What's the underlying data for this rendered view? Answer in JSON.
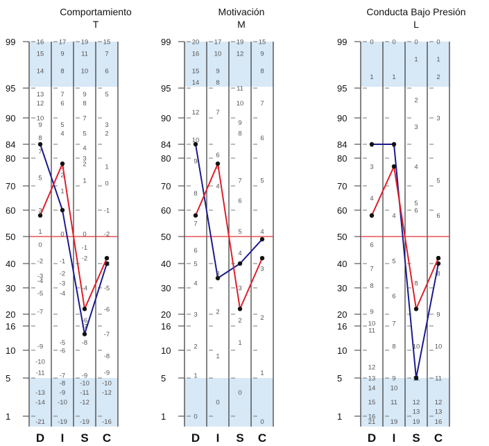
{
  "page": {
    "percentile_labels": [
      "99",
      "95",
      "90",
      "84",
      "80",
      "70",
      "60",
      "50",
      "40",
      "30",
      "20",
      "16",
      "10",
      "5",
      "1"
    ],
    "column_letters": [
      "D",
      "I",
      "S",
      "C"
    ],
    "colors": {
      "band": "#d7e8f6",
      "axis": "#333333",
      "midline": "#e03030",
      "blue_line": "#1a1a8c",
      "red_line": "#dd1f2b",
      "cell_text": "#555555"
    }
  },
  "chart_data": [
    {
      "type": "line",
      "title": "Comportamiento",
      "subtitle": "T",
      "categories": [
        "D",
        "I",
        "S",
        "C"
      ],
      "ylabel_ticks": [
        "99",
        "95",
        "90",
        "84",
        "80",
        "70",
        "60",
        "50",
        "40",
        "30",
        "20",
        "16",
        "10",
        "5",
        "1"
      ],
      "series": [
        {
          "color": "#1a1a8c",
          "values": [
            84,
            60,
            14,
            40
          ]
        },
        {
          "color": "#dd1f2b",
          "values": [
            58,
            78,
            22,
            42
          ]
        }
      ],
      "columns": [
        {
          "letter": "D",
          "labels": [
            {
              "t": "16",
              "p": 99.5
            },
            {
              "t": "15",
              "p": 98
            },
            {
              "t": "14",
              "p": 96.5
            },
            {
              "t": "13",
              "p": 94
            },
            {
              "t": "12",
              "p": 92.5
            },
            {
              "t": "10",
              "p": 90
            },
            {
              "t": "9",
              "p": 88.5
            },
            {
              "t": "8",
              "p": 85.5
            },
            {
              "t": "7",
              "p": 82
            },
            {
              "t": "5",
              "p": 73
            },
            {
              "t": "3",
              "p": 60
            },
            {
              "t": "1",
              "p": 52
            },
            {
              "t": "0",
              "p": 47
            },
            {
              "t": "-2",
              "p": 41
            },
            {
              "t": "-3",
              "p": 35
            },
            {
              "t": "-4",
              "p": 33
            },
            {
              "t": "-5",
              "p": 28
            },
            {
              "t": "-7",
              "p": 21
            },
            {
              "t": "-9",
              "p": 11
            },
            {
              "t": "-10",
              "p": 8
            },
            {
              "t": "-11",
              "p": 6
            },
            {
              "t": "-13",
              "p": 3.5
            },
            {
              "t": "-14",
              "p": 2.5
            },
            {
              "t": "-21",
              "p": 0.5
            }
          ]
        },
        {
          "letter": "I",
          "labels": [
            {
              "t": "17",
              "p": 99.5
            },
            {
              "t": "9",
              "p": 98
            },
            {
              "t": "8",
              "p": 96.5
            },
            {
              "t": "7",
              "p": 94
            },
            {
              "t": "6",
              "p": 92.5
            },
            {
              "t": "5",
              "p": 88.5
            },
            {
              "t": "4",
              "p": 86.5
            },
            {
              "t": "3",
              "p": 77
            },
            {
              "t": "2",
              "p": 74
            },
            {
              "t": "1",
              "p": 68
            },
            {
              "t": "0",
              "p": 51
            },
            {
              "t": "-1",
              "p": 41
            },
            {
              "t": "-2",
              "p": 36
            },
            {
              "t": "-3",
              "p": 32
            },
            {
              "t": "-4",
              "p": 28
            },
            {
              "t": "-5",
              "p": 12
            },
            {
              "t": "-6",
              "p": 10
            },
            {
              "t": "-7",
              "p": 5.5
            },
            {
              "t": "-8",
              "p": 4.5
            },
            {
              "t": "-9",
              "p": 3.5
            },
            {
              "t": "-10",
              "p": 2.5
            },
            {
              "t": "-19",
              "p": 0.5
            }
          ]
        },
        {
          "letter": "S",
          "labels": [
            {
              "t": "19",
              "p": 99.5
            },
            {
              "t": "11",
              "p": 98
            },
            {
              "t": "10",
              "p": 96.5
            },
            {
              "t": "9",
              "p": 94
            },
            {
              "t": "8",
              "p": 92.5
            },
            {
              "t": "7",
              "p": 90
            },
            {
              "t": "5",
              "p": 86.5
            },
            {
              "t": "4",
              "p": 83
            },
            {
              "t": "3",
              "p": 80
            },
            {
              "t": "2",
              "p": 78
            },
            {
              "t": "1",
              "p": 72
            },
            {
              "t": "0",
              "p": 51
            },
            {
              "t": "-1",
              "p": 46
            },
            {
              "t": "-2",
              "p": 42
            },
            {
              "t": "-4",
              "p": 30
            },
            {
              "t": "-6",
              "p": 18
            },
            {
              "t": "-7",
              "p": 16
            },
            {
              "t": "-8",
              "p": 12
            },
            {
              "t": "-9",
              "p": 5.5
            },
            {
              "t": "-10",
              "p": 4.5
            },
            {
              "t": "-11",
              "p": 3.5
            },
            {
              "t": "-12",
              "p": 2.5
            },
            {
              "t": "-19",
              "p": 0.5
            }
          ]
        },
        {
          "letter": "C",
          "labels": [
            {
              "t": "15",
              "p": 99.5
            },
            {
              "t": "7",
              "p": 98
            },
            {
              "t": "6",
              "p": 96.5
            },
            {
              "t": "5",
              "p": 94
            },
            {
              "t": "3",
              "p": 88.5
            },
            {
              "t": "2",
              "p": 86.5
            },
            {
              "t": "1",
              "p": 77
            },
            {
              "t": "0",
              "p": 71
            },
            {
              "t": "-1",
              "p": 60
            },
            {
              "t": "-2",
              "p": 51
            },
            {
              "t": "-3",
              "p": 40
            },
            {
              "t": "-5",
              "p": 30
            },
            {
              "t": "-6",
              "p": 22
            },
            {
              "t": "-7",
              "p": 14
            },
            {
              "t": "-8",
              "p": 9
            },
            {
              "t": "-9",
              "p": 6
            },
            {
              "t": "-10",
              "p": 4.5
            },
            {
              "t": "-12",
              "p": 3.5
            },
            {
              "t": "-16",
              "p": 0.5
            }
          ]
        }
      ]
    },
    {
      "type": "line",
      "title": "Motivación",
      "subtitle": "M",
      "categories": [
        "D",
        "I",
        "S",
        "C"
      ],
      "ylabel_ticks": [
        "99",
        "95",
        "90",
        "84",
        "80",
        "70",
        "60",
        "50",
        "40",
        "30",
        "20",
        "16",
        "10",
        "5",
        "1"
      ],
      "series": [
        {
          "color": "#1a1a8c",
          "values": [
            84,
            34,
            40,
            49
          ]
        },
        {
          "color": "#dd1f2b",
          "values": [
            58,
            78,
            22,
            42
          ]
        }
      ],
      "columns": [
        {
          "letter": "D",
          "labels": [
            {
              "t": "20",
              "p": 99.5
            },
            {
              "t": "16",
              "p": 98
            },
            {
              "t": "15",
              "p": 96.5
            },
            {
              "t": "14",
              "p": 95.5
            },
            {
              "t": "12",
              "p": 91
            },
            {
              "t": "10",
              "p": 85
            },
            {
              "t": "9",
              "p": 79
            },
            {
              "t": "8",
              "p": 67
            },
            {
              "t": "7",
              "p": 55
            },
            {
              "t": "6",
              "p": 45
            },
            {
              "t": "5",
              "p": 40
            },
            {
              "t": "4",
              "p": 32
            },
            {
              "t": "3",
              "p": 20
            },
            {
              "t": "2",
              "p": 11
            },
            {
              "t": "1",
              "p": 5.5
            },
            {
              "t": "0",
              "p": 1
            }
          ]
        },
        {
          "letter": "I",
          "labels": [
            {
              "t": "17",
              "p": 99.5
            },
            {
              "t": "10",
              "p": 98
            },
            {
              "t": "9",
              "p": 96.5
            },
            {
              "t": "8",
              "p": 95.5
            },
            {
              "t": "7",
              "p": 91
            },
            {
              "t": "6",
              "p": 81
            },
            {
              "t": "5",
              "p": 77
            },
            {
              "t": "4",
              "p": 70
            },
            {
              "t": "3",
              "p": 36
            },
            {
              "t": "2",
              "p": 21
            },
            {
              "t": "1",
              "p": 9
            },
            {
              "t": "0",
              "p": 2.5
            }
          ]
        },
        {
          "letter": "S",
          "labels": [
            {
              "t": "19",
              "p": 99.5
            },
            {
              "t": "12",
              "p": 98
            },
            {
              "t": "11",
              "p": 95
            },
            {
              "t": "10",
              "p": 92.5
            },
            {
              "t": "9",
              "p": 89
            },
            {
              "t": "8",
              "p": 86.5
            },
            {
              "t": "7",
              "p": 72
            },
            {
              "t": "6",
              "p": 64
            },
            {
              "t": "5",
              "p": 52
            },
            {
              "t": "4",
              "p": 44
            },
            {
              "t": "3",
              "p": 30
            },
            {
              "t": "2",
              "p": 18
            },
            {
              "t": "1",
              "p": 12
            },
            {
              "t": "0",
              "p": 3.5
            }
          ]
        },
        {
          "letter": "C",
          "labels": [
            {
              "t": "15",
              "p": 99.5
            },
            {
              "t": "9",
              "p": 98
            },
            {
              "t": "8",
              "p": 96.5
            },
            {
              "t": "7",
              "p": 92.5
            },
            {
              "t": "6",
              "p": 85.5
            },
            {
              "t": "5",
              "p": 72
            },
            {
              "t": "4",
              "p": 52
            },
            {
              "t": "3",
              "p": 38
            },
            {
              "t": "2",
              "p": 19
            },
            {
              "t": "1",
              "p": 6
            },
            {
              "t": "0",
              "p": 0.5
            }
          ]
        }
      ]
    },
    {
      "type": "line",
      "title": "Conducta Bajo Presión",
      "subtitle": "L",
      "categories": [
        "D",
        "I",
        "S",
        "C"
      ],
      "ylabel_ticks": [
        "99",
        "95",
        "90",
        "84",
        "80",
        "70",
        "60",
        "50",
        "40",
        "30",
        "20",
        "16",
        "10",
        "5",
        "1"
      ],
      "series": [
        {
          "color": "#1a1a8c",
          "values": [
            84,
            84,
            5,
            40
          ]
        },
        {
          "color": "#dd1f2b",
          "values": [
            58,
            77,
            22,
            42
          ]
        }
      ],
      "columns": [
        {
          "letter": "D",
          "labels": [
            {
              "t": "0",
              "p": 99
            },
            {
              "t": "1",
              "p": 96
            },
            {
              "t": "2",
              "p": 84
            },
            {
              "t": "3",
              "p": 77
            },
            {
              "t": "4",
              "p": 65
            },
            {
              "t": "5",
              "p": 58
            },
            {
              "t": "6",
              "p": 47
            },
            {
              "t": "7",
              "p": 38
            },
            {
              "t": "8",
              "p": 31
            },
            {
              "t": "9",
              "p": 21
            },
            {
              "t": "10",
              "p": 17
            },
            {
              "t": "11",
              "p": 15
            },
            {
              "t": "12",
              "p": 7
            },
            {
              "t": "13",
              "p": 5
            },
            {
              "t": "14",
              "p": 4
            },
            {
              "t": "15",
              "p": 2.5
            },
            {
              "t": "16",
              "p": 1
            },
            {
              "t": "21",
              "p": 0.5
            }
          ]
        },
        {
          "letter": "I",
          "labels": [
            {
              "t": "0",
              "p": 99
            },
            {
              "t": "1",
              "p": 96
            },
            {
              "t": "2",
              "p": 84
            },
            {
              "t": "3",
              "p": 77
            },
            {
              "t": "4",
              "p": 58
            },
            {
              "t": "5",
              "p": 41
            },
            {
              "t": "6",
              "p": 27
            },
            {
              "t": "7",
              "p": 17
            },
            {
              "t": "8",
              "p": 11
            },
            {
              "t": "9",
              "p": 5
            },
            {
              "t": "10",
              "p": 4
            },
            {
              "t": "11",
              "p": 2.5
            },
            {
              "t": "19",
              "p": 0.5
            }
          ]
        },
        {
          "letter": "S",
          "labels": [
            {
              "t": "0",
              "p": 99
            },
            {
              "t": "1",
              "p": 97.5
            },
            {
              "t": "2",
              "p": 93
            },
            {
              "t": "3",
              "p": 88
            },
            {
              "t": "4",
              "p": 77
            },
            {
              "t": "5",
              "p": 63
            },
            {
              "t": "6",
              "p": 60
            },
            {
              "t": "8",
              "p": 32
            },
            {
              "t": "10",
              "p": 11
            },
            {
              "t": "11",
              "p": 5
            },
            {
              "t": "12",
              "p": 2.5
            },
            {
              "t": "13",
              "p": 1.5
            },
            {
              "t": "19",
              "p": 0.5
            }
          ]
        },
        {
          "letter": "C",
          "labels": [
            {
              "t": "0",
              "p": 99
            },
            {
              "t": "1",
              "p": 97.5
            },
            {
              "t": "2",
              "p": 96
            },
            {
              "t": "3",
              "p": 90
            },
            {
              "t": "5",
              "p": 72
            },
            {
              "t": "6",
              "p": 58
            },
            {
              "t": "7",
              "p": 42
            },
            {
              "t": "8",
              "p": 36
            },
            {
              "t": "9",
              "p": 20
            },
            {
              "t": "10",
              "p": 11
            },
            {
              "t": "11",
              "p": 5
            },
            {
              "t": "12",
              "p": 2.5
            },
            {
              "t": "13",
              "p": 1.5
            },
            {
              "t": "16",
              "p": 0.5
            }
          ]
        }
      ]
    }
  ]
}
